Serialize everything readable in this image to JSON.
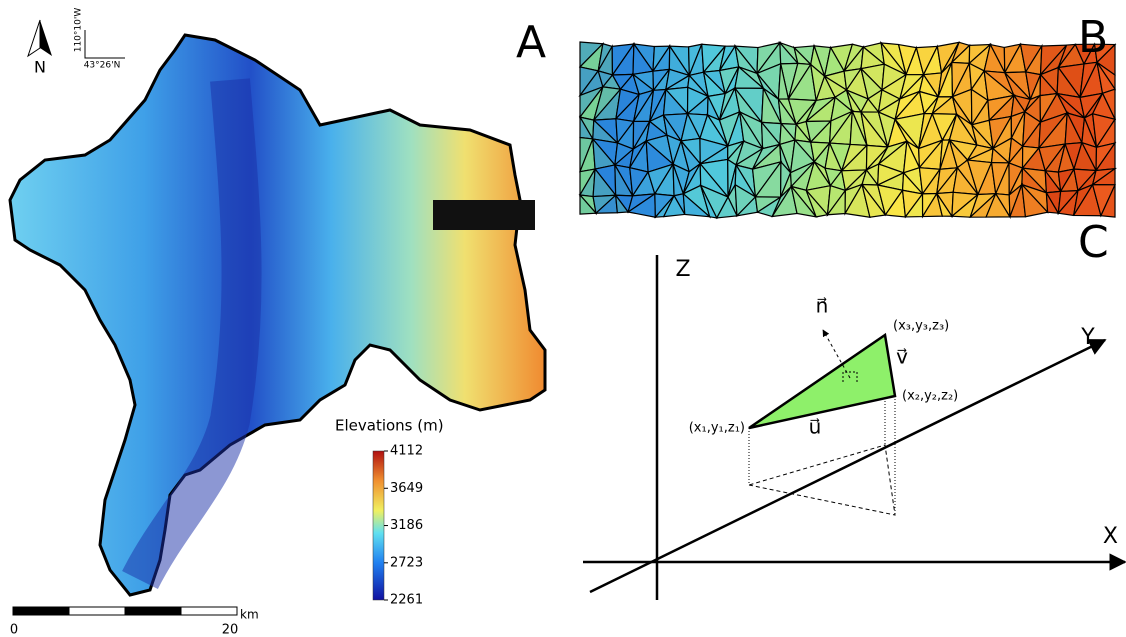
{
  "panels": {
    "a": "A",
    "b": "B",
    "c": "C"
  },
  "map": {
    "north": "N",
    "longitude": "110°10'W",
    "latitude": "43°26'N",
    "colorbar": {
      "title": "Elevations (m)",
      "range": [
        2261,
        4112
      ],
      "ticks": [
        4112,
        3649,
        3186,
        2723,
        2261
      ]
    },
    "scale_bar": {
      "labels": [
        "0",
        "20"
      ],
      "unit": "km"
    }
  },
  "diagram": {
    "axes": [
      "X",
      "Y",
      "Z"
    ],
    "vectors": [
      "n⃗",
      "v⃗",
      "u⃗"
    ],
    "points": [
      "(x₁,y₁,z₁)",
      "(x₂,y₂,z₂)",
      "(x₃,y₃,z₃)"
    ]
  }
}
